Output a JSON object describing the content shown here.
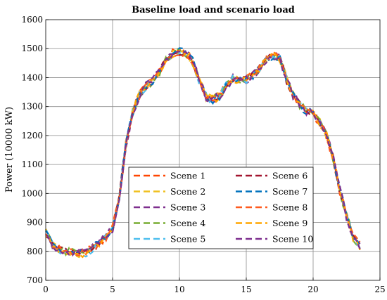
{
  "chart_data": {
    "type": "line",
    "title": "Baseline load and scenario load",
    "xlabel": "",
    "ylabel": "Power (10000 kW)",
    "xlim": [
      0,
      25
    ],
    "ylim": [
      700,
      1600
    ],
    "xticks": [
      0,
      5,
      10,
      15,
      20,
      25
    ],
    "yticks": [
      700,
      800,
      900,
      1000,
      1100,
      1200,
      1300,
      1400,
      1500,
      1600
    ],
    "grid": true,
    "legend_position": "bottom-center",
    "x": [
      0,
      0.5,
      1,
      1.5,
      2,
      2.5,
      3,
      3.5,
      4,
      4.5,
      5,
      5.5,
      6,
      6.5,
      7,
      7.5,
      8,
      8.5,
      9,
      9.5,
      10,
      10.5,
      11,
      11.5,
      12,
      12.5,
      13,
      13.5,
      14,
      14.5,
      15,
      15.5,
      16,
      16.5,
      17,
      17.5,
      18,
      18.5,
      19,
      19.5,
      20,
      20.5,
      21,
      21.5,
      22,
      22.5,
      23,
      23.5
    ],
    "baseline": [
      865,
      820,
      805,
      800,
      800,
      795,
      795,
      810,
      830,
      850,
      880,
      990,
      1170,
      1280,
      1340,
      1370,
      1390,
      1420,
      1460,
      1485,
      1490,
      1485,
      1455,
      1390,
      1335,
      1325,
      1335,
      1375,
      1395,
      1395,
      1395,
      1410,
      1430,
      1460,
      1475,
      1465,
      1395,
      1340,
      1305,
      1285,
      1275,
      1245,
      1200,
      1120,
      1010,
      920,
      850,
      820
    ],
    "series": [
      {
        "name": "Scene 1",
        "color": "#ff4500"
      },
      {
        "name": "Scene 2",
        "color": "#f0c020"
      },
      {
        "name": "Scene 3",
        "color": "#7e2f8e"
      },
      {
        "name": "Scene 4",
        "color": "#77ac30"
      },
      {
        "name": "Scene 5",
        "color": "#4dbeee"
      },
      {
        "name": "Scene 6",
        "color": "#a2142f"
      },
      {
        "name": "Scene 7",
        "color": "#0072bd"
      },
      {
        "name": "Scene 8",
        "color": "#ff5a1e"
      },
      {
        "name": "Scene 9",
        "color": "#ffa500"
      },
      {
        "name": "Scene 10",
        "color": "#7e2f8e"
      }
    ]
  }
}
